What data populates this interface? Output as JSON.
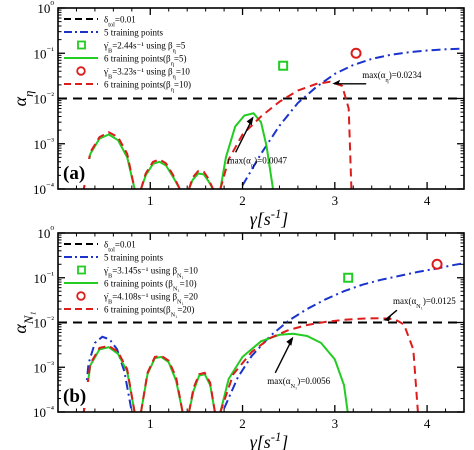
{
  "figure": {
    "xlabel_main": "γ̇",
    "xlabel_unit": "[s",
    "xlabel_exp": "-1",
    "xlabel_close": "]"
  },
  "chart_data": [
    {
      "type": "line",
      "panel_label": "(a)",
      "ylabel_main": "α",
      "ylabel_sub": "η",
      "xlim": [
        0,
        4.4
      ],
      "ylim_log10": [
        -4,
        0
      ],
      "x_ticks": [
        1,
        2,
        3,
        4
      ],
      "y_tick_labels": [
        "10⁰",
        "10⁻¹",
        "10⁻²",
        "10⁻³",
        "10⁻⁴"
      ],
      "grid": false,
      "legend_position": "top-left",
      "colors": {
        "threshold": "#000000",
        "five_points": "#1a33cc",
        "six_a": "#22cc22",
        "six_b": "#dd1c1c"
      },
      "legend": [
        {
          "label": "δ_tol=0.01",
          "style": "dashed",
          "color": "#000000"
        },
        {
          "label": "5 training points",
          "style": "dashdot",
          "color": "#1a33cc"
        },
        {
          "label": "γ̇_B=2.44s⁻¹ using β_η=5",
          "style": "square-marker",
          "color": "#22cc22"
        },
        {
          "label": "6 training points(β_η=5)",
          "style": "solid",
          "color": "#22cc22"
        },
        {
          "label": "γ̇_B=3.23s⁻¹ using β_η=10",
          "style": "circle-marker",
          "color": "#dd1c1c"
        },
        {
          "label": "6 training points(β_η=10)",
          "style": "dashed",
          "color": "#dd1c1c"
        }
      ],
      "threshold": 0.01,
      "series": [
        {
          "name": "5 training points",
          "x": [
            2.0,
            2.2,
            2.4,
            2.6,
            2.8,
            3.0,
            3.2,
            3.4,
            3.6,
            3.8,
            4.0,
            4.2,
            4.35
          ],
          "y": [
            0.00012,
            0.0006,
            0.0025,
            0.008,
            0.018,
            0.035,
            0.055,
            0.075,
            0.092,
            0.105,
            0.115,
            0.122,
            0.126
          ]
        },
        {
          "name": "6 training points(β_η=5)",
          "lobes": [
            {
              "x": [
                0.28,
                0.35,
                0.45,
                0.55,
                0.65,
                0.75,
                0.83
              ],
              "y": [
                0.0001,
                0.0006,
                0.0013,
                0.0016,
                0.0012,
                0.0005,
                0.0001
              ]
            },
            {
              "x": [
                0.9,
                0.95,
                1.03,
                1.1,
                1.17,
                1.25,
                1.32
              ],
              "y": [
                0.0001,
                0.0002,
                0.00036,
                0.0004,
                0.00033,
                0.00018,
                0.0001
              ]
            },
            {
              "x": [
                1.42,
                1.46,
                1.52,
                1.58,
                1.63,
                1.68
              ],
              "y": [
                0.0001,
                0.00016,
                0.00022,
                0.00021,
                0.00015,
                0.0001
              ]
            },
            {
              "x": [
                1.76,
                1.82,
                1.92,
                2.02,
                2.12,
                2.2,
                2.26,
                2.33
              ],
              "y": [
                0.0001,
                0.0005,
                0.0024,
                0.0042,
                0.0047,
                0.003,
                0.0009,
                0.0001
              ]
            }
          ]
        },
        {
          "name": "6 training points(β_η=10)",
          "lobes": [
            {
              "x": [
                0.28,
                0.35,
                0.45,
                0.55,
                0.65,
                0.75,
                0.83
              ],
              "y": [
                0.0001,
                0.00065,
                0.0014,
                0.0018,
                0.0014,
                0.0006,
                0.0001
              ]
            },
            {
              "x": [
                0.9,
                0.95,
                1.03,
                1.1,
                1.17,
                1.25,
                1.32
              ],
              "y": [
                0.0001,
                0.00022,
                0.0004,
                0.00045,
                0.00037,
                0.0002,
                0.0001
              ]
            },
            {
              "x": [
                1.42,
                1.46,
                1.52,
                1.58,
                1.63,
                1.68
              ],
              "y": [
                0.0001,
                0.00018,
                0.00025,
                0.00024,
                0.00017,
                0.0001
              ]
            },
            {
              "x": [
                1.76,
                1.85,
                2.0,
                2.2,
                2.4,
                2.6,
                2.8,
                2.95,
                3.08,
                3.15,
                3.18
              ],
              "y": [
                0.0001,
                0.00045,
                0.0016,
                0.004,
                0.0085,
                0.015,
                0.021,
                0.0234,
                0.019,
                0.006,
                0.0001
              ]
            }
          ]
        }
      ],
      "markers": [
        {
          "shape": "square",
          "x": 2.44,
          "y": 0.053,
          "color": "#22cc22"
        },
        {
          "shape": "circle",
          "x": 3.23,
          "y": 0.1,
          "color": "#dd1c1c"
        }
      ],
      "annotations": [
        {
          "text": "max(α_η)=0.0234",
          "color": "#dd1c1c",
          "at": [
            2.95,
            0.0234
          ]
        },
        {
          "text": "max(α_η)=0.0047",
          "color": "#22cc22",
          "at": [
            2.12,
            0.0047
          ]
        }
      ]
    },
    {
      "type": "line",
      "panel_label": "(b)",
      "ylabel_main": "α",
      "ylabel_sub": "N₁",
      "xlim": [
        0,
        4.4
      ],
      "ylim_log10": [
        -4,
        0
      ],
      "x_ticks": [
        1,
        2,
        3,
        4
      ],
      "y_tick_labels": [
        "10⁰",
        "10⁻¹",
        "10⁻²",
        "10⁻³",
        "10⁻⁴"
      ],
      "grid": false,
      "legend_position": "top-left",
      "colors": {
        "threshold": "#000000",
        "five_points": "#1a33cc",
        "six_a": "#22cc22",
        "six_b": "#dd1c1c"
      },
      "legend": [
        {
          "label": "δ_tol=0.01",
          "style": "dashed",
          "color": "#000000"
        },
        {
          "label": "5 training points",
          "style": "dashdot",
          "color": "#1a33cc"
        },
        {
          "label": "γ̇_B=3.145s⁻¹ using β_N₁=10",
          "style": "square-marker",
          "color": "#22cc22"
        },
        {
          "label": "6 training points (β_N₁=10)",
          "style": "solid",
          "color": "#22cc22"
        },
        {
          "label": "γ̇_B=4.108s⁻¹ using β_N₁=20",
          "style": "circle-marker",
          "color": "#dd1c1c"
        },
        {
          "label": "6 training points(β_N₁=20)",
          "style": "dashed",
          "color": "#dd1c1c"
        }
      ],
      "threshold": 0.01,
      "series": [
        {
          "name": "5 training points",
          "x": [
            0.28,
            0.33,
            0.4,
            0.48,
            0.56,
            0.64,
            0.72,
            0.8
          ],
          "y": [
            0.0001,
            0.0012,
            0.0035,
            0.0048,
            0.0042,
            0.0025,
            0.0008,
            0.0001
          ],
          "x2": [
            1.8,
            1.95,
            2.1,
            2.3,
            2.5,
            2.7,
            2.9,
            3.1,
            3.3,
            3.5,
            3.7,
            3.9,
            4.1,
            4.3,
            4.4
          ],
          "y2": [
            0.00012,
            0.0006,
            0.0018,
            0.005,
            0.011,
            0.02,
            0.033,
            0.05,
            0.07,
            0.09,
            0.11,
            0.135,
            0.16,
            0.195,
            0.21
          ]
        },
        {
          "name": "6 training points (β_N₁=10)",
          "lobes": [
            {
              "x": [
                0.28,
                0.35,
                0.45,
                0.55,
                0.65,
                0.75,
                0.83
              ],
              "y": [
                0.0001,
                0.0011,
                0.0025,
                0.0028,
                0.002,
                0.0008,
                0.0001
              ]
            },
            {
              "x": [
                0.9,
                0.97,
                1.05,
                1.12,
                1.2,
                1.28,
                1.35
              ],
              "y": [
                0.0001,
                0.0007,
                0.0016,
                0.0017,
                0.0013,
                0.0005,
                0.0001
              ]
            },
            {
              "x": [
                1.42,
                1.47,
                1.53,
                1.59,
                1.65,
                1.7
              ],
              "y": [
                0.0001,
                0.0003,
                0.00065,
                0.0007,
                0.0004,
                0.0001
              ]
            },
            {
              "x": [
                1.76,
                1.85,
                2.0,
                2.2,
                2.4,
                2.55,
                2.7,
                2.85,
                3.0,
                3.1,
                3.14
              ],
              "y": [
                0.0001,
                0.00055,
                0.0017,
                0.0038,
                0.0053,
                0.0056,
                0.005,
                0.0035,
                0.0015,
                0.0004,
                0.0001
              ]
            }
          ]
        },
        {
          "name": "6 training points(β_N₁=20)",
          "lobes": [
            {
              "x": [
                0.28,
                0.35,
                0.45,
                0.55,
                0.65,
                0.75,
                0.83
              ],
              "y": [
                0.0001,
                0.0012,
                0.0027,
                0.003,
                0.0022,
                0.0009,
                0.0001
              ]
            },
            {
              "x": [
                0.9,
                0.97,
                1.05,
                1.12,
                1.2,
                1.28,
                1.35
              ],
              "y": [
                0.0001,
                0.00075,
                0.0017,
                0.0018,
                0.0014,
                0.0006,
                0.0001
              ]
            },
            {
              "x": [
                1.42,
                1.47,
                1.53,
                1.59,
                1.65,
                1.7
              ],
              "y": [
                0.0001,
                0.00035,
                0.0007,
                0.00075,
                0.00045,
                0.0001
              ]
            },
            {
              "x": [
                1.76,
                1.9,
                2.1,
                2.3,
                2.5,
                2.7,
                2.9,
                3.1,
                3.3,
                3.5,
                3.65,
                3.75,
                3.85,
                3.9
              ],
              "y": [
                0.0001,
                0.0007,
                0.0022,
                0.0045,
                0.0068,
                0.0088,
                0.0103,
                0.0115,
                0.0122,
                0.0125,
                0.0118,
                0.009,
                0.0025,
                0.0001
              ]
            }
          ]
        }
      ],
      "markers": [
        {
          "shape": "square",
          "x": 3.145,
          "y": 0.1,
          "color": "#22cc22"
        },
        {
          "shape": "circle",
          "x": 4.108,
          "y": 0.2,
          "color": "#dd1c1c"
        }
      ],
      "annotations": [
        {
          "text": "max(α_N₁)=0.0125",
          "color": "#dd1c1c",
          "at": [
            3.5,
            0.0125
          ]
        },
        {
          "text": "max(α_N₁)=0.0056",
          "color": "#22cc22",
          "at": [
            2.55,
            0.0056
          ]
        }
      ]
    }
  ]
}
